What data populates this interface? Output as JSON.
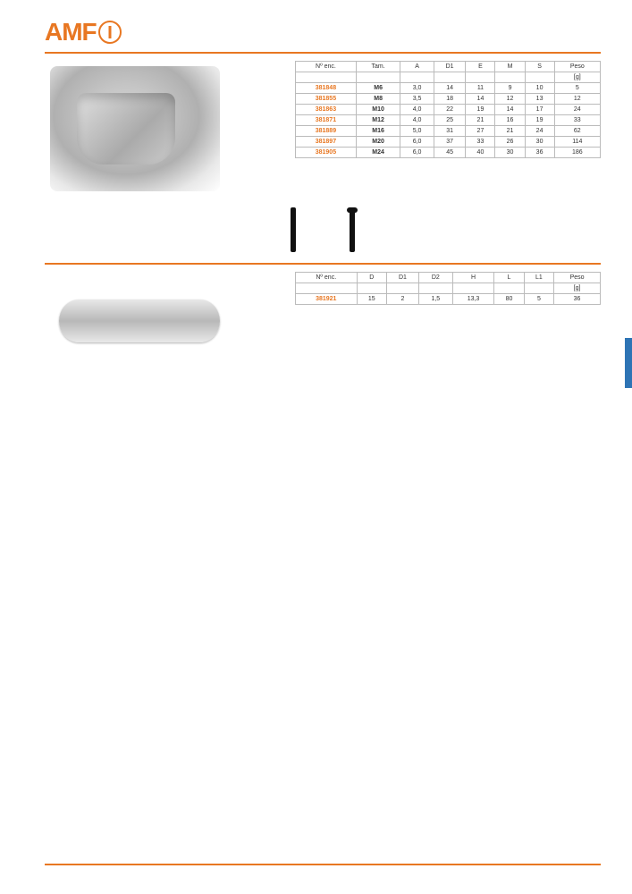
{
  "brand": "AMF",
  "accent_color": "#e87722",
  "tab_color": "#2e74b5",
  "section1": {
    "table": {
      "headers": [
        "Nº enc.",
        "Tam.",
        "A",
        "D1",
        "E",
        "M",
        "S",
        "Peso"
      ],
      "unit_row": [
        "",
        "",
        "",
        "",
        "",
        "",
        "",
        "[g]"
      ],
      "rows": [
        [
          "381848",
          "M6",
          "3,0",
          "14",
          "11",
          "9",
          "10",
          "5"
        ],
        [
          "381855",
          "M8",
          "3,5",
          "18",
          "14",
          "12",
          "13",
          "12"
        ],
        [
          "381863",
          "M10",
          "4,0",
          "22",
          "19",
          "14",
          "17",
          "24"
        ],
        [
          "381871",
          "M12",
          "4,0",
          "25",
          "21",
          "16",
          "19",
          "33"
        ],
        [
          "381889",
          "M16",
          "5,0",
          "31",
          "27",
          "21",
          "24",
          "62"
        ],
        [
          "381897",
          "M20",
          "6,0",
          "37",
          "33",
          "26",
          "30",
          "114"
        ],
        [
          "381905",
          "M24",
          "6,0",
          "45",
          "40",
          "30",
          "36",
          "186"
        ]
      ]
    },
    "accessories_label": ""
  },
  "section2": {
    "table": {
      "headers": [
        "Nº enc.",
        "D",
        "D1",
        "D2",
        "H",
        "L",
        "L1",
        "Peso"
      ],
      "unit_row": [
        "",
        "",
        "",
        "",
        "",
        "",
        "",
        "[g]"
      ],
      "rows": [
        [
          "381921",
          "15",
          "2",
          "1,5",
          "13,3",
          "80",
          "5",
          "36"
        ]
      ]
    }
  },
  "footer": {
    "left": "",
    "right": ""
  }
}
